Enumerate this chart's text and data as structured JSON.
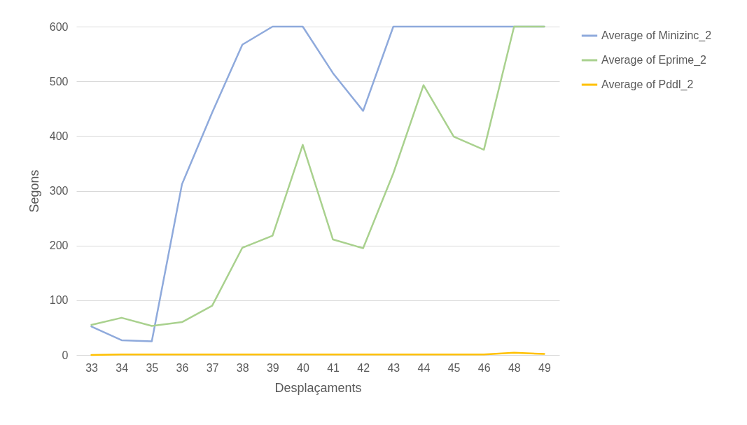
{
  "chart_data": {
    "type": "line",
    "xlabel": "Desplaçaments",
    "ylabel": "Segons",
    "categories": [
      "33",
      "34",
      "35",
      "36",
      "37",
      "38",
      "39",
      "40",
      "41",
      "42",
      "43",
      "44",
      "45",
      "46",
      "48",
      "49"
    ],
    "series": [
      {
        "name": "Average of Minizinc_2",
        "color": "#8faadc",
        "values": [
          52,
          27,
          25,
          312,
          443,
          567,
          600,
          600,
          515,
          446,
          600,
          600,
          600,
          600,
          600,
          600
        ]
      },
      {
        "name": "Average of Eprime_2",
        "color": "#a9d18e",
        "values": [
          55,
          68,
          53,
          60,
          90,
          196,
          218,
          384,
          211,
          195,
          332,
          493,
          399,
          375,
          600,
          600
        ]
      },
      {
        "name": "Average of Pddl_2",
        "color": "#ffc000",
        "values": [
          0,
          1,
          1,
          1,
          1,
          1,
          1,
          1,
          1,
          1,
          1,
          1,
          1,
          1,
          4,
          2
        ]
      }
    ],
    "ylim": [
      0,
      600
    ],
    "yticks": [
      0,
      100,
      200,
      300,
      400,
      500,
      600
    ],
    "grid": "y",
    "legend": "right",
    "marker": "none",
    "line_style": "solid"
  }
}
